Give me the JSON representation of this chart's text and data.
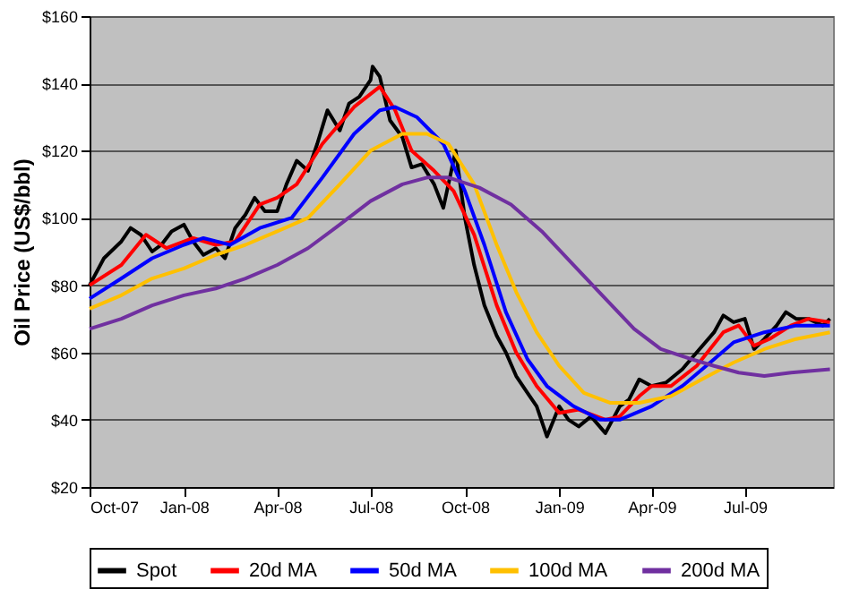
{
  "chart_data": {
    "type": "line",
    "ylabel": "Oil Price (US$/bbl)",
    "xlim": [
      "2007-10-01",
      "2009-09-25"
    ],
    "xticks": [
      {
        "value": "2007-10-01",
        "label": "Oct-07"
      },
      {
        "value": "2008-01-01",
        "label": "Jan-08"
      },
      {
        "value": "2008-04-01",
        "label": "Apr-08"
      },
      {
        "value": "2008-07-01",
        "label": "Jul-08"
      },
      {
        "value": "2008-10-01",
        "label": "Oct-08"
      },
      {
        "value": "2009-01-01",
        "label": "Jan-09"
      },
      {
        "value": "2009-04-01",
        "label": "Apr-09"
      },
      {
        "value": "2009-07-01",
        "label": "Jul-09"
      }
    ],
    "ylim": [
      20,
      160
    ],
    "yticks": [
      {
        "value": 20,
        "label": "$20"
      },
      {
        "value": 40,
        "label": "$40"
      },
      {
        "value": 60,
        "label": "$60"
      },
      {
        "value": 80,
        "label": "$80"
      },
      {
        "value": 100,
        "label": "$100"
      },
      {
        "value": 120,
        "label": "$120"
      },
      {
        "value": 140,
        "label": "$140"
      },
      {
        "value": 160,
        "label": "$160"
      }
    ],
    "grid": "y",
    "legend": "bottom",
    "marker": "none",
    "line_style": "solid",
    "series": [
      {
        "name": "Spot",
        "color": "#000000",
        "x": [
          "2007-10-01",
          "2007-10-15",
          "2007-11-01",
          "2007-11-10",
          "2007-11-20",
          "2007-12-01",
          "2007-12-10",
          "2007-12-20",
          "2008-01-01",
          "2008-01-10",
          "2008-01-20",
          "2008-02-01",
          "2008-02-10",
          "2008-02-20",
          "2008-03-01",
          "2008-03-10",
          "2008-03-20",
          "2008-04-01",
          "2008-04-10",
          "2008-04-20",
          "2008-05-01",
          "2008-05-10",
          "2008-05-20",
          "2008-06-01",
          "2008-06-10",
          "2008-06-20",
          "2008-07-01",
          "2008-07-03",
          "2008-07-10",
          "2008-07-20",
          "2008-08-01",
          "2008-08-10",
          "2008-08-20",
          "2008-09-01",
          "2008-09-10",
          "2008-09-22",
          "2008-10-01",
          "2008-10-10",
          "2008-10-20",
          "2008-11-01",
          "2008-11-10",
          "2008-11-20",
          "2008-12-01",
          "2008-12-10",
          "2008-12-20",
          "2009-01-01",
          "2009-01-10",
          "2009-01-20",
          "2009-02-01",
          "2009-02-15",
          "2009-03-01",
          "2009-03-10",
          "2009-03-20",
          "2009-04-01",
          "2009-04-15",
          "2009-05-01",
          "2009-05-15",
          "2009-06-01",
          "2009-06-10",
          "2009-06-20",
          "2009-07-01",
          "2009-07-10",
          "2009-07-20",
          "2009-08-01",
          "2009-08-10",
          "2009-08-20",
          "2009-09-01",
          "2009-09-15",
          "2009-09-22"
        ],
        "values": [
          80,
          88,
          93,
          97,
          95,
          90,
          92,
          96,
          98,
          93,
          89,
          91,
          88,
          97,
          101,
          106,
          102,
          102,
          110,
          117,
          114,
          122,
          132,
          126,
          134,
          136,
          141,
          145,
          142,
          129,
          124,
          115,
          116,
          110,
          103,
          120,
          100,
          86,
          74,
          65,
          60,
          53,
          48,
          44,
          35,
          44,
          40,
          38,
          41,
          36,
          44,
          46,
          52,
          50,
          51,
          55,
          60,
          66,
          71,
          69,
          70,
          61,
          64,
          68,
          72,
          70,
          70,
          68,
          70
        ]
      },
      {
        "name": "20d MA",
        "color": "#ff0000",
        "x": [
          "2007-10-01",
          "2007-11-01",
          "2007-11-25",
          "2007-12-15",
          "2008-01-10",
          "2008-02-01",
          "2008-02-20",
          "2008-03-15",
          "2008-04-01",
          "2008-04-20",
          "2008-05-15",
          "2008-06-15",
          "2008-07-10",
          "2008-07-25",
          "2008-08-10",
          "2008-09-01",
          "2008-09-20",
          "2008-10-10",
          "2008-11-01",
          "2008-11-20",
          "2008-12-10",
          "2009-01-01",
          "2009-01-20",
          "2009-02-15",
          "2009-03-01",
          "2009-03-20",
          "2009-04-01",
          "2009-04-20",
          "2009-05-15",
          "2009-06-10",
          "2009-06-25",
          "2009-07-10",
          "2009-07-25",
          "2009-08-15",
          "2009-09-01",
          "2009-09-22"
        ],
        "values": [
          80,
          86,
          95,
          91,
          94,
          92,
          93,
          104,
          106,
          110,
          122,
          133,
          139,
          132,
          120,
          114,
          108,
          95,
          74,
          60,
          50,
          42,
          43,
          40,
          41,
          47,
          50,
          50,
          56,
          66,
          68,
          62,
          64,
          68,
          70,
          69
        ]
      },
      {
        "name": "50d MA",
        "color": "#0000ff",
        "x": [
          "2007-10-01",
          "2007-11-01",
          "2007-12-01",
          "2008-01-01",
          "2008-01-20",
          "2008-02-15",
          "2008-03-15",
          "2008-04-15",
          "2008-05-15",
          "2008-06-15",
          "2008-07-10",
          "2008-07-25",
          "2008-08-15",
          "2008-09-10",
          "2008-10-01",
          "2008-10-20",
          "2008-11-10",
          "2008-12-01",
          "2008-12-20",
          "2009-01-15",
          "2009-02-10",
          "2009-03-01",
          "2009-04-01",
          "2009-05-01",
          "2009-06-01",
          "2009-06-20",
          "2009-07-20",
          "2009-08-20",
          "2009-09-22"
        ],
        "values": [
          76,
          82,
          88,
          92,
          94,
          92,
          97,
          100,
          112,
          125,
          132,
          133,
          130,
          122,
          108,
          92,
          72,
          58,
          50,
          44,
          40,
          40,
          44,
          50,
          58,
          63,
          66,
          68,
          68
        ]
      },
      {
        "name": "100d MA",
        "color": "#ffc000",
        "x": [
          "2007-10-01",
          "2007-11-01",
          "2007-12-01",
          "2008-01-01",
          "2008-02-01",
          "2008-03-01",
          "2008-04-01",
          "2008-05-01",
          "2008-06-01",
          "2008-07-01",
          "2008-08-01",
          "2008-08-25",
          "2008-09-15",
          "2008-10-10",
          "2008-11-01",
          "2008-11-20",
          "2008-12-10",
          "2009-01-01",
          "2009-01-25",
          "2009-02-20",
          "2009-03-20",
          "2009-04-20",
          "2009-05-20",
          "2009-06-20",
          "2009-07-20",
          "2009-08-20",
          "2009-09-22"
        ],
        "values": [
          73,
          77,
          82,
          85,
          89,
          92,
          96,
          100,
          110,
          120,
          125,
          125,
          122,
          110,
          92,
          78,
          66,
          56,
          48,
          45,
          45,
          47,
          52,
          57,
          61,
          64,
          66
        ]
      },
      {
        "name": "200d MA",
        "color": "#7030a0",
        "x": [
          "2007-10-01",
          "2007-11-01",
          "2007-12-01",
          "2008-01-01",
          "2008-02-01",
          "2008-03-01",
          "2008-04-01",
          "2008-05-01",
          "2008-06-01",
          "2008-07-01",
          "2008-08-01",
          "2008-08-25",
          "2008-09-15",
          "2008-10-15",
          "2008-11-15",
          "2008-12-15",
          "2009-01-15",
          "2009-02-15",
          "2009-03-15",
          "2009-04-10",
          "2009-05-10",
          "2009-06-01",
          "2009-06-25",
          "2009-07-20",
          "2009-08-15",
          "2009-09-22"
        ],
        "values": [
          67,
          70,
          74,
          77,
          79,
          82,
          86,
          91,
          98,
          105,
          110,
          112,
          112,
          109,
          104,
          96,
          86,
          76,
          67,
          61,
          58,
          56,
          54,
          53,
          54,
          55
        ]
      }
    ]
  }
}
